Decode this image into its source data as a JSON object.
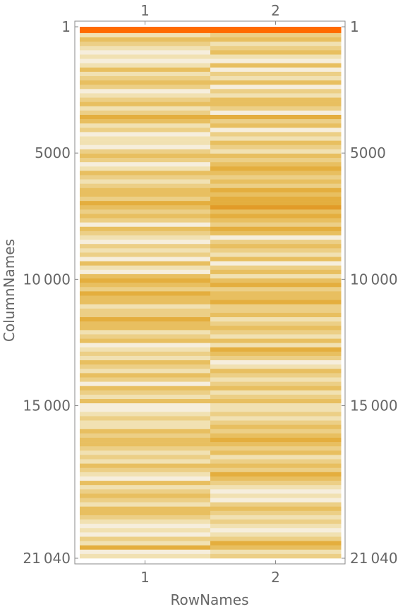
{
  "chart_data": {
    "type": "heatmap",
    "xlabel": "RowNames",
    "ylabel": "ColumnNames",
    "columns": [
      "1",
      "2"
    ],
    "y_ticks": [
      "1",
      "5000",
      "10 000",
      "15 000",
      "21 040"
    ],
    "y_tick_values": [
      1,
      5000,
      10000,
      15000,
      21040
    ],
    "ylim": [
      1,
      21040
    ],
    "row_ranges": [
      [
        1,
        250
      ],
      [
        250,
        21040
      ]
    ],
    "palette": [
      "#F6EEDC",
      "#F1E1B2",
      "#ECCF86",
      "#E8BF60",
      "#E4AE3E",
      "#E29B28",
      "#FF6A00"
    ],
    "levels_col1": [
      6,
      1,
      3,
      2,
      1,
      0,
      1,
      0,
      1,
      3,
      1,
      2,
      3,
      2,
      0,
      1,
      2,
      3,
      1,
      2,
      4,
      3,
      1,
      2,
      0,
      1,
      1,
      0,
      2,
      3,
      2,
      0,
      1,
      3,
      2,
      1,
      2,
      3,
      3,
      2,
      4,
      3,
      2,
      3,
      2,
      0,
      3,
      2,
      1,
      0,
      2,
      1,
      2,
      0,
      3,
      1,
      0,
      3,
      4,
      3,
      2,
      4,
      3,
      3,
      1,
      2,
      2,
      4,
      3,
      3,
      1,
      2,
      3,
      0,
      1,
      2,
      1,
      3,
      2,
      1,
      3,
      2,
      0,
      3,
      2,
      1,
      3,
      0,
      0,
      1,
      2,
      1,
      1,
      3,
      2,
      3,
      3,
      2,
      1,
      2,
      1,
      3,
      2,
      1,
      0,
      3,
      1,
      2,
      3,
      2,
      1,
      3,
      3,
      2,
      1,
      0,
      1,
      0,
      2,
      1,
      4,
      0,
      1
    ],
    "levels_col2": [
      6,
      2,
      3,
      1,
      2,
      3,
      1,
      0,
      3,
      0,
      2,
      1,
      3,
      0,
      2,
      1,
      3,
      3,
      2,
      0,
      4,
      2,
      3,
      0,
      2,
      1,
      3,
      2,
      1,
      3,
      2,
      3,
      4,
      3,
      2,
      3,
      2,
      4,
      3,
      4,
      4,
      5,
      3,
      4,
      3,
      2,
      4,
      3,
      0,
      2,
      3,
      2,
      1,
      3,
      0,
      2,
      3,
      1,
      3,
      4,
      2,
      3,
      3,
      4,
      2,
      2,
      3,
      1,
      2,
      3,
      2,
      1,
      3,
      1,
      4,
      3,
      2,
      0,
      1,
      3,
      2,
      1,
      2,
      3,
      1,
      2,
      3,
      1,
      1,
      2,
      1,
      2,
      3,
      2,
      3,
      4,
      3,
      2,
      3,
      1,
      2,
      3,
      2,
      4,
      3,
      2,
      1,
      0,
      1,
      0,
      2,
      3,
      2,
      1,
      2,
      1,
      0,
      1,
      2,
      4,
      3,
      1,
      2
    ]
  }
}
